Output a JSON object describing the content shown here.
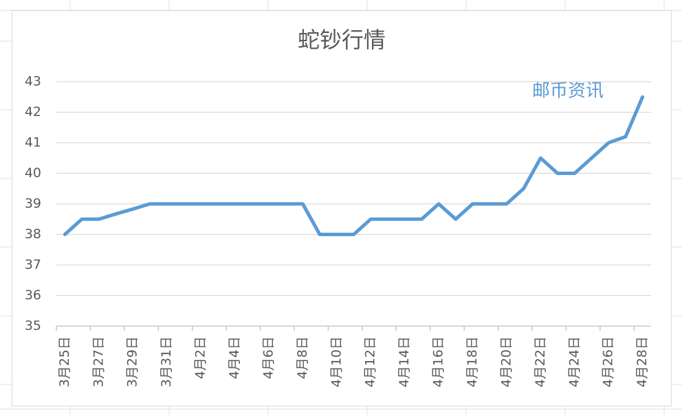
{
  "chart_data": {
    "type": "line",
    "title": "蛇钞行情",
    "annotation": "邮币资讯",
    "categories": [
      "3月25日",
      null,
      "3月27日",
      null,
      "3月29日",
      null,
      "3月31日",
      null,
      "4月2日",
      null,
      "4月4日",
      null,
      "4月6日",
      null,
      "4月8日",
      null,
      "4月10日",
      null,
      "4月12日",
      null,
      "4月14日",
      null,
      "4月16日",
      null,
      "4月18日",
      null,
      "4月20日",
      null,
      "4月22日",
      null,
      "4月24日",
      null,
      "4月26日",
      null,
      "4月28日"
    ],
    "values": [
      38,
      38.5,
      38.5,
      38.67,
      38.83,
      39,
      39,
      39,
      39,
      39,
      39,
      39,
      39,
      39,
      39,
      38,
      38,
      38,
      38.5,
      38.5,
      38.5,
      38.5,
      39,
      38.5,
      39,
      39,
      39,
      39.5,
      40.5,
      40,
      40,
      40.5,
      41,
      41.2,
      42.5
    ],
    "color": "#5b9bd5",
    "ylim": [
      35,
      43
    ],
    "yticks": [
      35,
      36,
      37,
      38,
      39,
      40,
      41,
      42,
      43
    ],
    "grid": true
  }
}
